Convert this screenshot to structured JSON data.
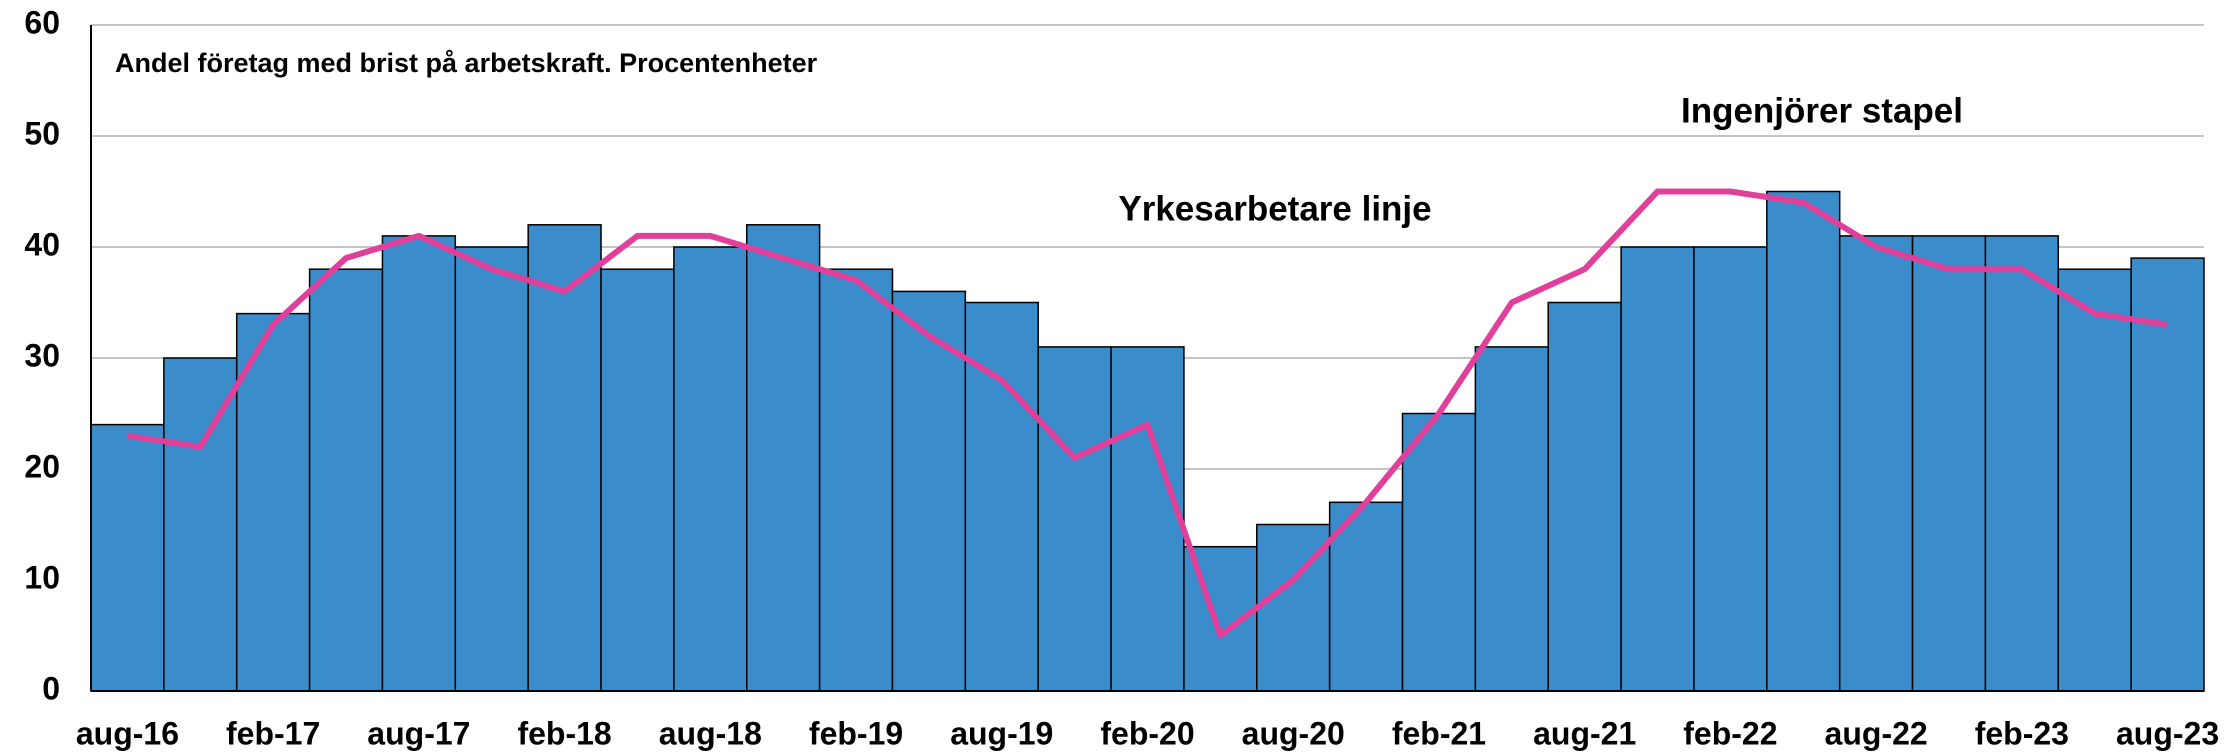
{
  "chart_data": {
    "type": "bar_line",
    "title": "Andel företag med brist på arbetskraft. Procentenheter",
    "categories": [
      "aug-16",
      null,
      "feb-17",
      null,
      "aug-17",
      null,
      "feb-18",
      null,
      "aug-18",
      null,
      "feb-19",
      null,
      "aug-19",
      null,
      "feb-20",
      null,
      "aug-20",
      null,
      "feb-21",
      null,
      "aug-21",
      null,
      "feb-22",
      null,
      "aug-22",
      null,
      "feb-23",
      null,
      "aug-23"
    ],
    "series": [
      {
        "name": "Ingenjörer stapel",
        "type": "bar",
        "color": "#3a8cca",
        "values": [
          24,
          30,
          34,
          38,
          41,
          40,
          42,
          38,
          40,
          42,
          38,
          36,
          35,
          31,
          31,
          13,
          15,
          17,
          25,
          31,
          35,
          40,
          40,
          45,
          41,
          41,
          41,
          38,
          39
        ]
      },
      {
        "name": "Yrkesarbetare linje",
        "type": "line",
        "color": "#e0409a",
        "values": [
          23,
          22,
          33,
          39,
          41,
          38,
          36,
          41,
          41,
          39,
          37,
          32,
          28,
          21,
          24,
          5,
          10,
          17,
          25,
          35,
          38,
          45,
          45,
          44,
          40,
          38,
          38,
          34,
          33
        ]
      }
    ],
    "ylim": [
      0,
      60
    ],
    "yticks": [
      0,
      10,
      20,
      30,
      40,
      50,
      60
    ],
    "grid": true
  }
}
